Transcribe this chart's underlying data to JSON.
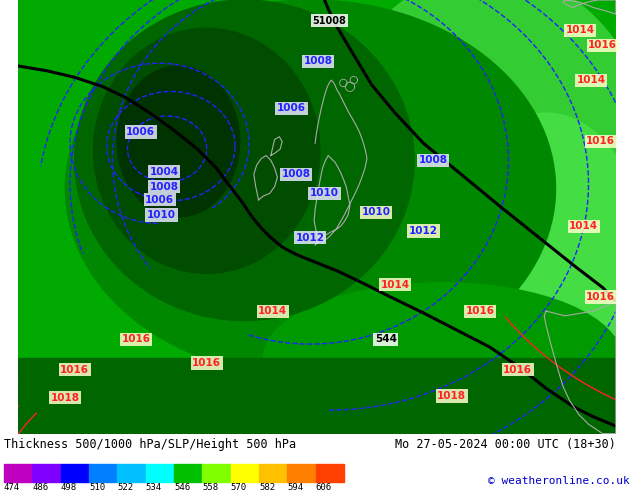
{
  "title_left": "Thickness 500/1000 hPa/SLP/Height 500 hPa",
  "title_right": "Mo 27-05-2024 00:00 UTC (18+30)",
  "copyright": "© weatheronline.co.uk",
  "colorbar_values": [
    474,
    486,
    498,
    510,
    522,
    534,
    546,
    558,
    570,
    582,
    594,
    606
  ],
  "colorbar_colors": [
    "#c000c0",
    "#8000ff",
    "#0000ff",
    "#0080ff",
    "#00c0ff",
    "#00ffff",
    "#00c000",
    "#80ff00",
    "#ffff00",
    "#ffc000",
    "#ff8000",
    "#ff4000"
  ],
  "fig_width": 6.34,
  "fig_height": 4.9,
  "dpi": 100,
  "green_bg": "#00aa00",
  "green_dark1": "#007700",
  "green_dark2": "#005500",
  "green_dark3": "#003300",
  "green_light": "#22cc22",
  "green_med": "#009900",
  "blue_isobar": "#2222ff",
  "red_isobar": "#ff2222",
  "black_contour": "#000000",
  "label_bg_blue": "#e8e8ff",
  "label_bg_yellow": "#ffffcc",
  "label_bg_white": "#ffffff",
  "coast_color": "#aaaaaa",
  "text_title": "#000000",
  "text_copyright": "#0000cc"
}
